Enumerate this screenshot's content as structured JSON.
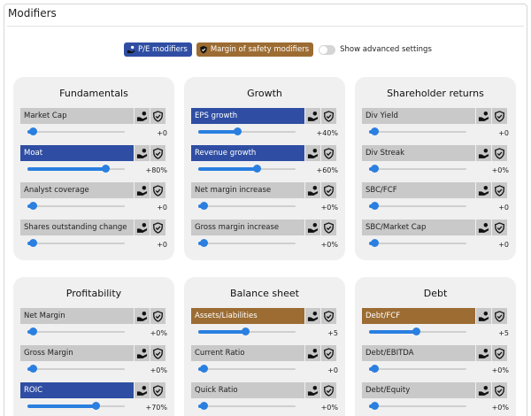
{
  "page_title": "Modifiers",
  "legend": {
    "pe_label": "P/E modifiers",
    "mos_label": "Margin of safety modifiers",
    "advanced_label": "Show advanced settings",
    "advanced_on": false,
    "pe_icon": "hand-coin-icon",
    "mos_icon": "shield-icon"
  },
  "colors": {
    "pe": "#2f4ea3",
    "mos": "#9c6c33",
    "inactive": "#c9c9c9",
    "slider": "#2a7fe0"
  },
  "cards": [
    {
      "title": "Fundamentals",
      "modifiers": [
        {
          "label": "Market Cap",
          "value": "+0",
          "level": 0.05,
          "state": "none"
        },
        {
          "label": "Moat",
          "value": "+80%",
          "level": 0.8,
          "state": "pe"
        },
        {
          "label": "Analyst coverage",
          "value": "+0",
          "level": 0.05,
          "state": "none"
        },
        {
          "label": "Shares outstanding change",
          "value": "+0",
          "level": 0.05,
          "state": "none"
        }
      ]
    },
    {
      "title": "Growth",
      "modifiers": [
        {
          "label": "EPS growth",
          "value": "+40%",
          "level": 0.4,
          "state": "pe"
        },
        {
          "label": "Revenue growth",
          "value": "+60%",
          "level": 0.6,
          "state": "pe"
        },
        {
          "label": "Net margin increase",
          "value": "+0%",
          "level": 0.05,
          "state": "none"
        },
        {
          "label": "Gross margin increase",
          "value": "+0%",
          "level": 0.05,
          "state": "none"
        }
      ]
    },
    {
      "title": "Shareholder returns",
      "modifiers": [
        {
          "label": "Div Yield",
          "value": "+0",
          "level": 0.05,
          "state": "none"
        },
        {
          "label": "Div Streak",
          "value": "+0%",
          "level": 0.05,
          "state": "none"
        },
        {
          "label": "SBC/FCF",
          "value": "+0",
          "level": 0.05,
          "state": "none"
        },
        {
          "label": "SBC/Market Cap",
          "value": "+0",
          "level": 0.05,
          "state": "none"
        }
      ]
    },
    {
      "title": "Profitability",
      "modifiers": [
        {
          "label": "Net Margin",
          "value": "+0%",
          "level": 0.05,
          "state": "none"
        },
        {
          "label": "Gross Margin",
          "value": "+0%",
          "level": 0.05,
          "state": "none"
        },
        {
          "label": "ROIC",
          "value": "+70%",
          "level": 0.7,
          "state": "pe"
        }
      ]
    },
    {
      "title": "Balance sheet",
      "modifiers": [
        {
          "label": "Assets/Liabilities",
          "value": "+5",
          "level": 0.48,
          "state": "mos"
        },
        {
          "label": "Current Ratio",
          "value": "+0",
          "level": 0.05,
          "state": "none"
        },
        {
          "label": "Quick Ratio",
          "value": "+0%",
          "level": 0.05,
          "state": "none"
        }
      ]
    },
    {
      "title": "Debt",
      "modifiers": [
        {
          "label": "Debt/FCF",
          "value": "+5",
          "level": 0.48,
          "state": "mos"
        },
        {
          "label": "Debt/EBITDA",
          "value": "+0%",
          "level": 0.05,
          "state": "none"
        },
        {
          "label": "Debt/Equity",
          "value": "+0%",
          "level": 0.05,
          "state": "none"
        }
      ]
    }
  ]
}
